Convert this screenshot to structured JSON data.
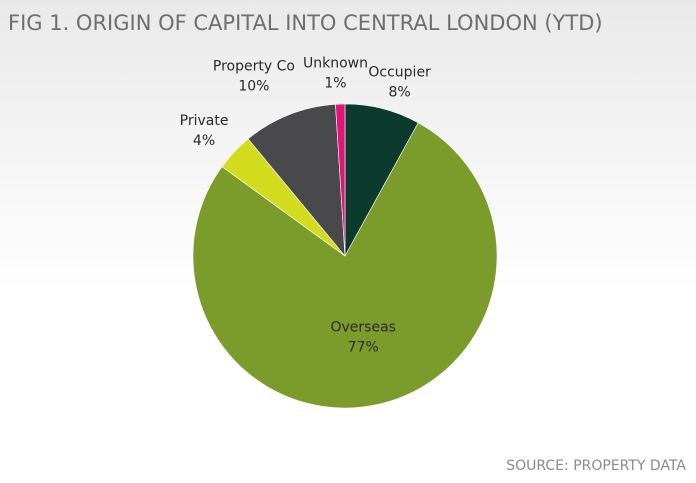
{
  "chart_data": {
    "type": "pie",
    "title": "FIG 1. ORIGIN OF CAPITAL INTO CENTRAL LONDON (YTD)",
    "source": "SOURCE: PROPERTY DATA",
    "categories": [
      "Occupier",
      "Overseas",
      "Private",
      "Property Co",
      "Unknown"
    ],
    "values": [
      8,
      77,
      4,
      10,
      1
    ],
    "value_labels": [
      "8%",
      "77%",
      "4%",
      "10%",
      "1%"
    ],
    "colors": [
      "#0c3a2d",
      "#7b9b2b",
      "#d3db1f",
      "#49494b",
      "#df157b"
    ]
  }
}
